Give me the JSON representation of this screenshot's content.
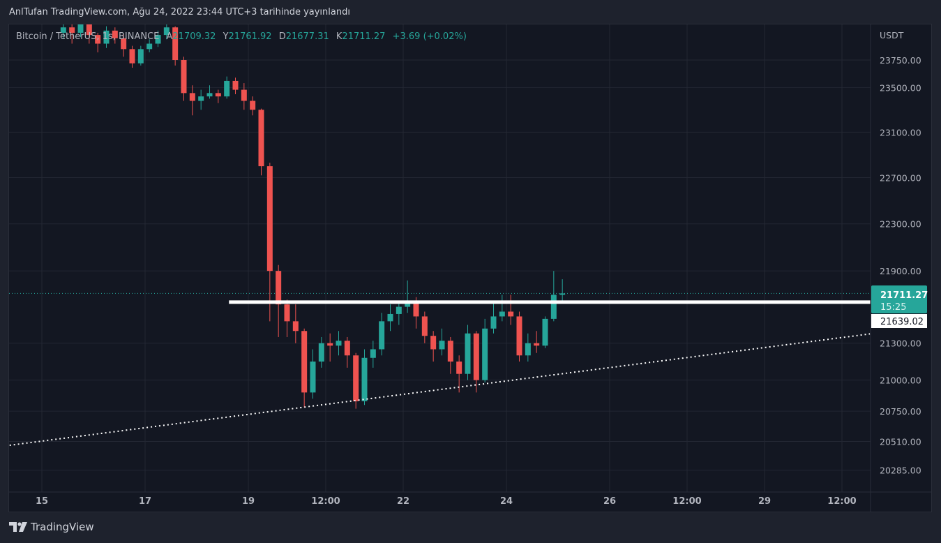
{
  "header": {
    "published": "AnlTufan TradingView.com, Ağu 24, 2022 23:44 UTC+3 tarihinde yayınlandı"
  },
  "legend": {
    "symbol": "Bitcoin / TetherUS, 1s, BINANCE",
    "open_label": "A",
    "open": "21709.32",
    "high_label": "Y",
    "high": "21761.92",
    "low_label": "D",
    "low": "21677.31",
    "close_label": "K",
    "close": "21711.27",
    "change": "+3.69 (+0.02%)"
  },
  "brand": {
    "name": "TradingView",
    "logo_icon": "tradingview-logo-icon"
  },
  "colors": {
    "up": "#26a69a",
    "down": "#ef5350",
    "background": "#131722",
    "grid": "#232733",
    "line": "#ffffff"
  },
  "chart_data": {
    "type": "candlestick",
    "symbol": "BTCUSDT",
    "currency": "USDT",
    "y_scale": "log",
    "ylim": [
      20150,
      24100
    ],
    "grid": true,
    "y_ticks": [
      "23750.00",
      "23500.00",
      "23100.00",
      "22700.00",
      "22300.00",
      "21900.00",
      "21300.00",
      "21000.00",
      "20750.00",
      "20510.00",
      "20285.00"
    ],
    "x_ticks": [
      {
        "label": "15",
        "time": "2022-08-15 00:00"
      },
      {
        "label": "17",
        "time": "2022-08-17 00:00"
      },
      {
        "label": "19",
        "time": "2022-08-19 00:00"
      },
      {
        "label": "12:00",
        "time": "2022-08-20 12:00"
      },
      {
        "label": "22",
        "time": "2022-08-22 00:00"
      },
      {
        "label": "24",
        "time": "2022-08-24 00:00"
      },
      {
        "label": "26",
        "time": "2022-08-26 00:00"
      },
      {
        "label": "12:00",
        "time": "2022-08-27 12:00"
      },
      {
        "label": "29",
        "time": "2022-08-29 00:00"
      },
      {
        "label": "12:00",
        "time": "2022-08-30 12:00"
      }
    ],
    "candle_start": "2022-08-15 08:00",
    "candle_hours": 4,
    "ohlc": [
      [
        24000,
        24120,
        23950,
        24050
      ],
      [
        24050,
        24100,
        23900,
        24000
      ],
      [
        24000,
        24150,
        23960,
        24080
      ],
      [
        24080,
        24110,
        23900,
        23980
      ],
      [
        23980,
        24000,
        23820,
        23900
      ],
      [
        23900,
        24060,
        23860,
        24020
      ],
      [
        24020,
        24050,
        23900,
        23950
      ],
      [
        23950,
        23990,
        23780,
        23850
      ],
      [
        23850,
        23880,
        23680,
        23720
      ],
      [
        23720,
        23880,
        23700,
        23850
      ],
      [
        23850,
        23940,
        23820,
        23900
      ],
      [
        23900,
        24020,
        23870,
        23980
      ],
      [
        23980,
        24080,
        23940,
        24050
      ],
      [
        24050,
        24060,
        23700,
        23750
      ],
      [
        23750,
        23780,
        23380,
        23450
      ],
      [
        23450,
        23520,
        23250,
        23380
      ],
      [
        23380,
        23480,
        23300,
        23420
      ],
      [
        23420,
        23520,
        23400,
        23450
      ],
      [
        23450,
        23480,
        23360,
        23420
      ],
      [
        23420,
        23600,
        23400,
        23560
      ],
      [
        23560,
        23590,
        23440,
        23480
      ],
      [
        23480,
        23540,
        23300,
        23380
      ],
      [
        23380,
        23420,
        23250,
        23300
      ],
      [
        23300,
        23310,
        22720,
        22800
      ],
      [
        22800,
        22830,
        21480,
        21900
      ],
      [
        21900,
        21950,
        21350,
        21620
      ],
      [
        21620,
        21660,
        21350,
        21480
      ],
      [
        21480,
        21620,
        21300,
        21400
      ],
      [
        21400,
        21420,
        20780,
        20900
      ],
      [
        20900,
        21250,
        20850,
        21150
      ],
      [
        21150,
        21350,
        21100,
        21300
      ],
      [
        21300,
        21380,
        21150,
        21280
      ],
      [
        21280,
        21400,
        21200,
        21320
      ],
      [
        21320,
        21350,
        21100,
        21200
      ],
      [
        21200,
        21220,
        20770,
        20830
      ],
      [
        20830,
        21250,
        20800,
        21180
      ],
      [
        21180,
        21320,
        21100,
        21250
      ],
      [
        21250,
        21550,
        21200,
        21480
      ],
      [
        21480,
        21620,
        21400,
        21540
      ],
      [
        21540,
        21650,
        21450,
        21600
      ],
      [
        21600,
        21820,
        21550,
        21640
      ],
      [
        21640,
        21680,
        21420,
        21520
      ],
      [
        21520,
        21560,
        21300,
        21360
      ],
      [
        21360,
        21400,
        21150,
        21250
      ],
      [
        21250,
        21420,
        21200,
        21320
      ],
      [
        21320,
        21350,
        21050,
        21150
      ],
      [
        21150,
        21200,
        20900,
        21050
      ],
      [
        21050,
        21450,
        21000,
        21380
      ],
      [
        21380,
        21400,
        20900,
        21000
      ],
      [
        21000,
        21500,
        20980,
        21420
      ],
      [
        21420,
        21650,
        21380,
        21520
      ],
      [
        21520,
        21700,
        21480,
        21560
      ],
      [
        21560,
        21700,
        21450,
        21520
      ],
      [
        21520,
        21560,
        21150,
        21200
      ],
      [
        21200,
        21380,
        21150,
        21300
      ],
      [
        21300,
        21400,
        21220,
        21280
      ],
      [
        21280,
        21520,
        21260,
        21500
      ],
      [
        21500,
        21900,
        21480,
        21700
      ],
      [
        21700,
        21830,
        21650,
        21711.27
      ]
    ],
    "last_price": {
      "value": "21711.27",
      "countdown": "15:25"
    },
    "horizontal_line": {
      "price": 21639.02,
      "label": "21639.02",
      "start": "2022-08-18 15:00"
    },
    "trend_line": {
      "style": "dotted",
      "points": [
        {
          "time": "2022-08-14 09:00",
          "price": 20480
        },
        {
          "time": "2022-08-31 01:00",
          "price": 21376
        }
      ]
    }
  }
}
